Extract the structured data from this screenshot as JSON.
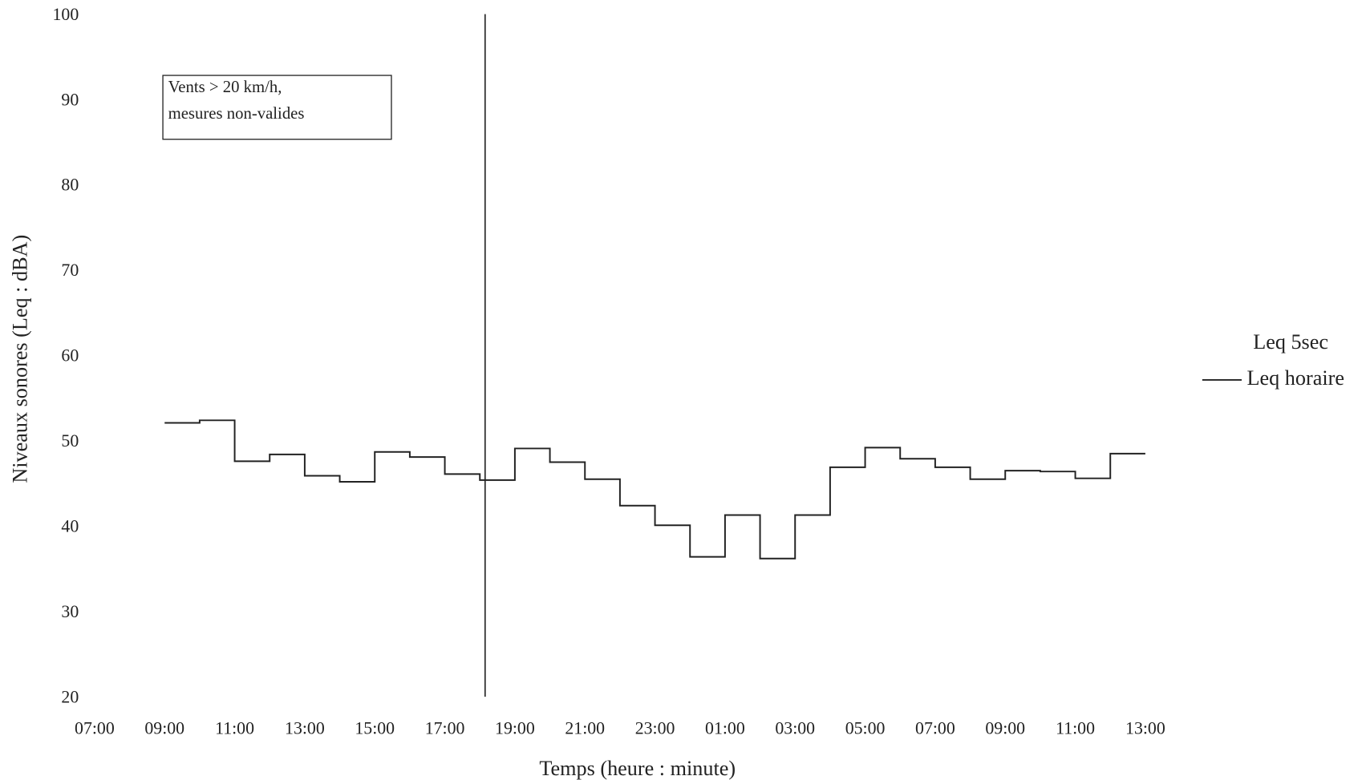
{
  "chart_data": {
    "type": "step",
    "xlabel": "Temps (heure : minute)",
    "ylabel": "Niveaux sonores (Leq : dBA)",
    "xlim": [
      0,
      30
    ],
    "xticks": [
      {
        "value": 0,
        "label": "07:00"
      },
      {
        "value": 2,
        "label": "09:00"
      },
      {
        "value": 4,
        "label": "11:00"
      },
      {
        "value": 6,
        "label": "13:00"
      },
      {
        "value": 8,
        "label": "15:00"
      },
      {
        "value": 10,
        "label": "17:00"
      },
      {
        "value": 12,
        "label": "19:00"
      },
      {
        "value": 14,
        "label": "21:00"
      },
      {
        "value": 16,
        "label": "23:00"
      },
      {
        "value": 18,
        "label": "01:00"
      },
      {
        "value": 20,
        "label": "03:00"
      },
      {
        "value": 22,
        "label": "05:00"
      },
      {
        "value": 24,
        "label": "07:00"
      },
      {
        "value": 26,
        "label": "09:00"
      },
      {
        "value": 28,
        "label": "11:00"
      },
      {
        "value": 30,
        "label": "13:00"
      }
    ],
    "ylim": [
      20,
      100
    ],
    "yticks": [
      20,
      30,
      40,
      50,
      60,
      70,
      80,
      90,
      100
    ],
    "grid": false,
    "legend": "right",
    "legend_heading": "Leq 5sec",
    "series": [
      {
        "name": "Leq horaire",
        "color": "#222222",
        "x": [
          2,
          3,
          4,
          5,
          6,
          7,
          8,
          9,
          10,
          11,
          12,
          13,
          14,
          15,
          16,
          17,
          18,
          19,
          20,
          21,
          22,
          23,
          24,
          25,
          26,
          27,
          28,
          29
        ],
        "values": [
          52.3,
          52.6,
          47.8,
          48.6,
          46.1,
          45.4,
          48.9,
          48.3,
          46.3,
          45.6,
          49.3,
          47.7,
          45.7,
          42.6,
          40.3,
          36.6,
          41.5,
          36.4,
          41.5,
          47.1,
          49.4,
          48.1,
          47.1,
          45.7,
          46.7,
          46.6,
          45.8,
          48.7
        ]
      }
    ],
    "vline": 11.15,
    "annotation": [
      "Vents > 20 km/h,",
      "mesures non-valides"
    ]
  }
}
